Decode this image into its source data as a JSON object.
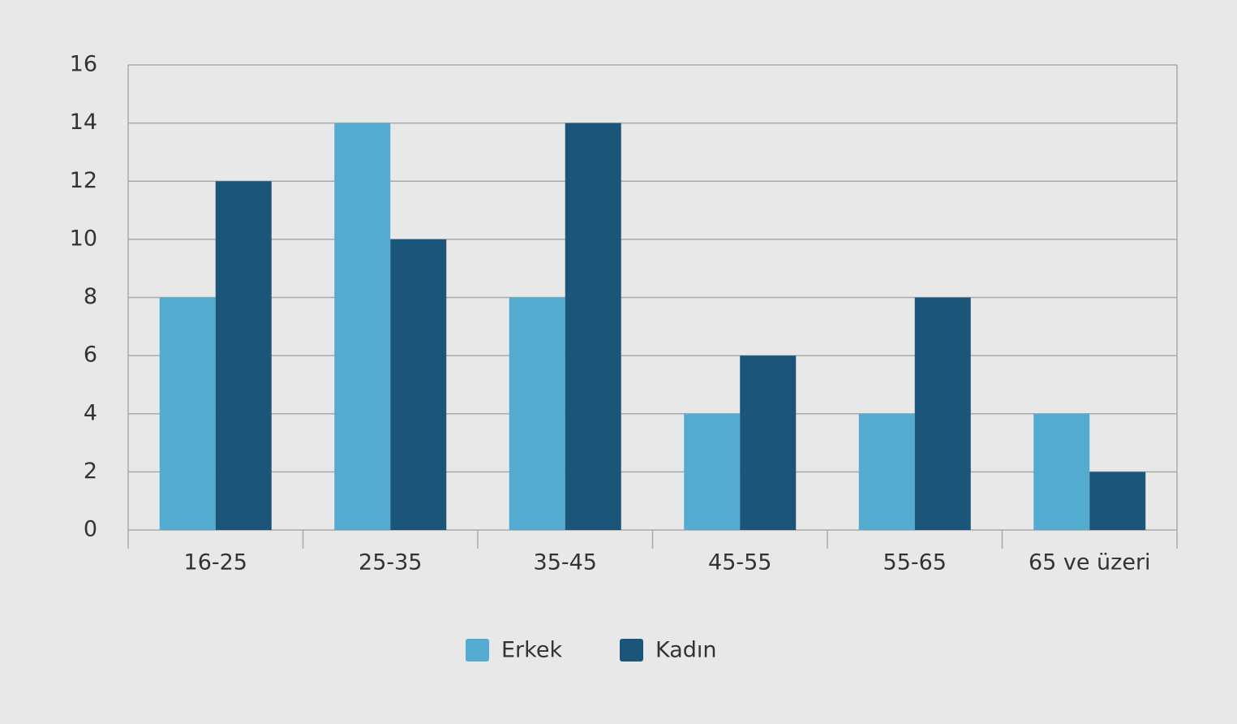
{
  "chart_data": {
    "type": "bar",
    "categories": [
      "16-25",
      "25-35",
      "35-45",
      "45-55",
      "55-65",
      "65 ve üzeri"
    ],
    "series": [
      {
        "name": "Erkek",
        "color": "#53abcf",
        "values": [
          8,
          14,
          8,
          4,
          4,
          4
        ]
      },
      {
        "name": "Kadın",
        "color": "#1b5579",
        "values": [
          12,
          10,
          14,
          6,
          8,
          2
        ]
      }
    ],
    "ylim": [
      0,
      16
    ],
    "yticks": [
      0,
      2,
      4,
      6,
      8,
      10,
      12,
      14,
      16
    ],
    "grid": true,
    "legend": "bottom"
  }
}
